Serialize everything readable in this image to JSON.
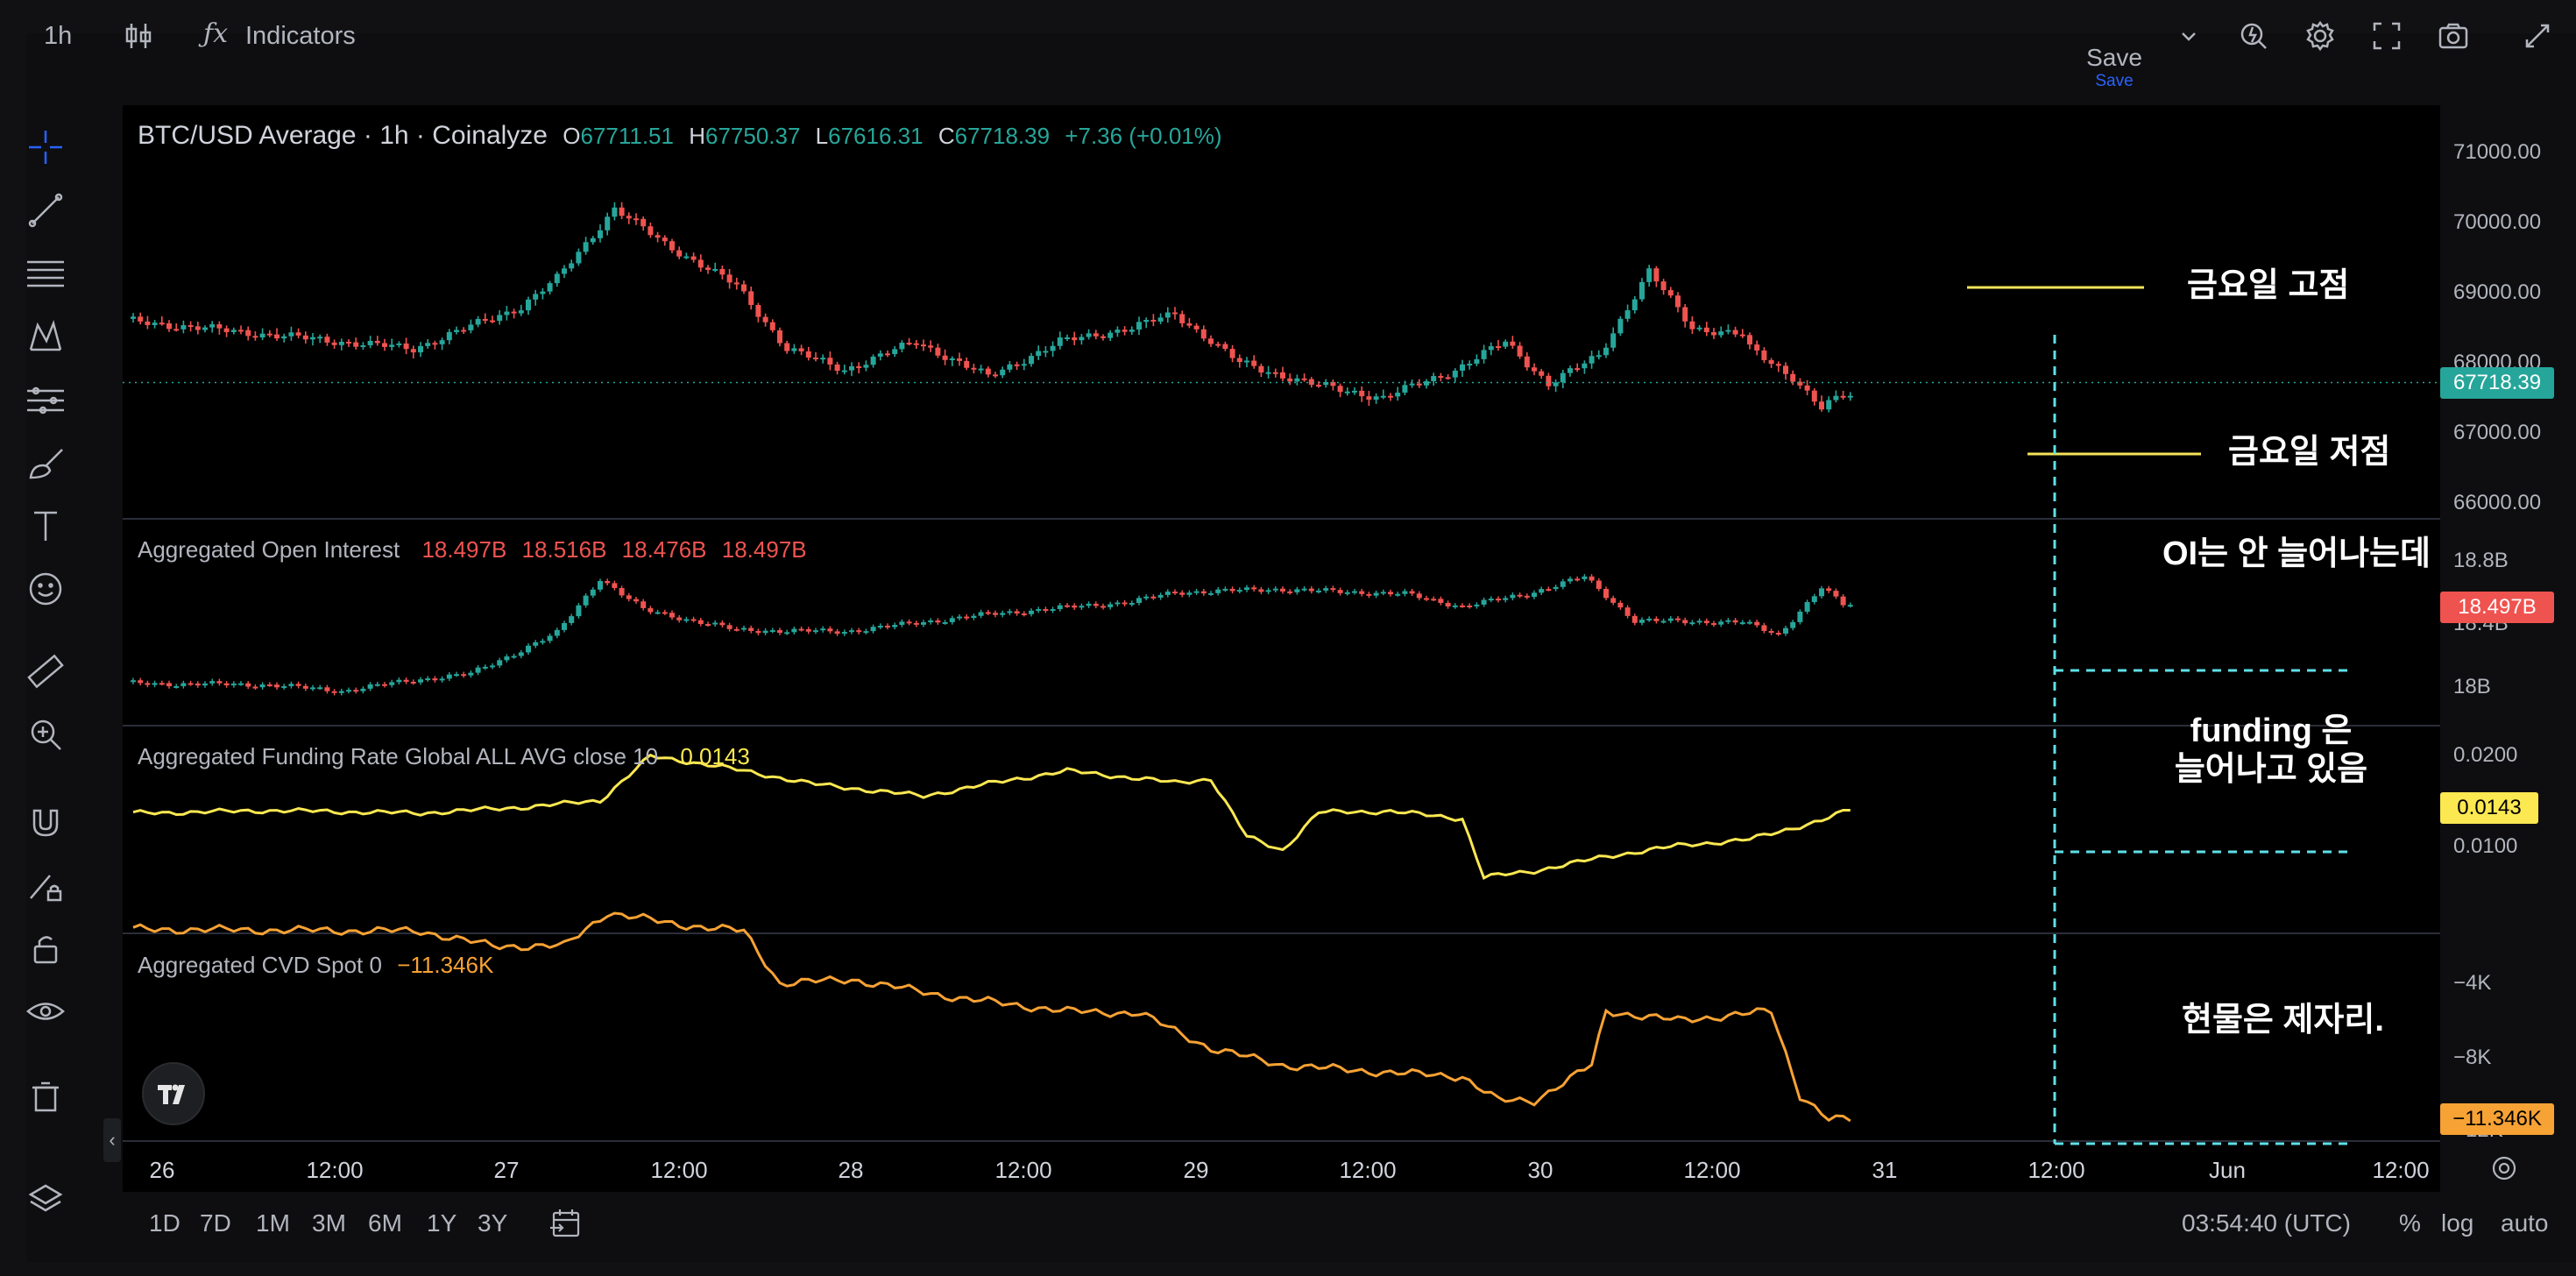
{
  "toolbar": {
    "interval": "1h",
    "indicators_label": "Indicators",
    "save_label": "Save",
    "save_sublabel": "Save"
  },
  "symbol": {
    "title": "BTC/USD Average · 1h · Coinalyze",
    "o_label": "O",
    "o": "67711.51",
    "h_label": "H",
    "h": "67750.37",
    "l_label": "L",
    "l": "67616.31",
    "c_label": "C",
    "c": "67718.39",
    "change": "+7.36 (+0.01%)"
  },
  "panes": {
    "oi": {
      "label": "Aggregated Open Interest",
      "v1": "18.497B",
      "v2": "18.516B",
      "v3": "18.476B",
      "v4": "18.497B"
    },
    "funding": {
      "label": "Aggregated Funding Rate Global ALL AVG close 10",
      "value": "0.0143"
    },
    "cvd": {
      "label": "Aggregated CVD Spot 0",
      "value": "−11.346K"
    }
  },
  "price_axis": {
    "main": [
      "71000.00",
      "70000.00",
      "69000.00",
      "68000.00",
      "67000.00",
      "66000.00"
    ],
    "oi": [
      "18.8B",
      "18.4B",
      "18B"
    ],
    "funding": [
      "0.0200",
      "0.0100"
    ],
    "cvd": [
      "−4K",
      "−8K",
      "−12K"
    ]
  },
  "last_values": {
    "price": "67718.39",
    "oi": "18.497B",
    "funding": "0.0143",
    "cvd": "−11.346K"
  },
  "colors": {
    "up": "#26a69a",
    "down": "#ef5350",
    "funding_line": "#fce851",
    "cvd_line": "#f7a234",
    "annotation_line": "#f5e35a",
    "guide_dash": "#5ee0e8"
  },
  "x_axis": [
    "26",
    "12:00",
    "27",
    "12:00",
    "28",
    "12:00",
    "29",
    "12:00",
    "30",
    "12:00",
    "31",
    "12:00",
    "Jun",
    "12:00"
  ],
  "annotations": {
    "friday_high": "금요일 고점",
    "friday_low": "금요일 저점",
    "oi_note": "OI는 안 늘어나는데",
    "funding_note_1": "funding 은",
    "funding_note_2": "늘어나고 있음",
    "spot_note": "현물은 제자리."
  },
  "bottom": {
    "ranges": [
      "1D",
      "7D",
      "1M",
      "3M",
      "6M",
      "1Y",
      "3Y"
    ],
    "clock": "03:54:40 (UTC)",
    "percent": "%",
    "log": "log",
    "auto": "auto"
  },
  "icons": [
    "candles-icon",
    "fx-icon",
    "chevron-down-icon",
    "alert-icon",
    "gear-icon",
    "fullscreen-icon",
    "camera-icon",
    "draw-icon",
    "crosshair-icon",
    "trendline-icon",
    "fib-icon",
    "pattern-icon",
    "projection-icon",
    "brush-icon",
    "text-icon",
    "emoji-icon",
    "ruler-icon",
    "zoom-icon",
    "magnet-icon",
    "pencil-lock-icon",
    "lock-icon",
    "eye-icon",
    "trash-icon",
    "layers-icon",
    "tradingview-logo-icon",
    "goto-date-icon",
    "settings-icon"
  ]
}
